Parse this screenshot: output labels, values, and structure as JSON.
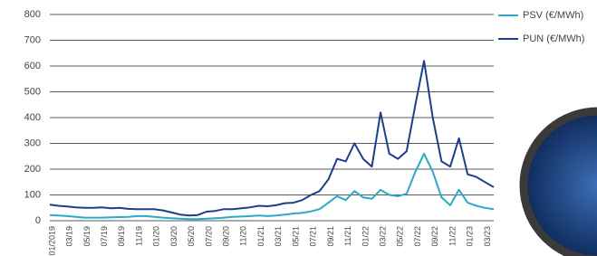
{
  "chart_data": {
    "type": "line",
    "categories": [
      "01/2019",
      null,
      "03/19",
      null,
      "05/19",
      null,
      "07/19",
      null,
      "09/19",
      null,
      "11/19",
      null,
      "01/20",
      null,
      "03/20",
      null,
      "05/20",
      null,
      "07/20",
      null,
      "09/20",
      null,
      "11/20",
      null,
      "01/21",
      null,
      "03/21",
      null,
      "05/21",
      null,
      "07/21",
      null,
      "09/21",
      null,
      "11/21",
      null,
      "01/22",
      null,
      "03/22",
      null,
      "05/22",
      null,
      "07/22",
      null,
      "09/22",
      null,
      "11/22",
      null,
      "01/23",
      null,
      "03/23",
      null
    ],
    "series": [
      {
        "name": "PSV (€/MWh)",
        "color": "#2aa9c8",
        "values": [
          22,
          20,
          18,
          15,
          12,
          12,
          12,
          13,
          14,
          15,
          18,
          18,
          15,
          12,
          10,
          8,
          6,
          6,
          8,
          10,
          12,
          15,
          16,
          18,
          20,
          18,
          20,
          24,
          28,
          30,
          36,
          45,
          70,
          95,
          80,
          115,
          90,
          85,
          120,
          100,
          95,
          105,
          190,
          260,
          190,
          90,
          60,
          120,
          70,
          58,
          50,
          45
        ]
      },
      {
        "name": "PUN (€/MWh)",
        "color": "#1c3f8c",
        "values": [
          62,
          58,
          55,
          52,
          50,
          50,
          52,
          48,
          50,
          46,
          45,
          45,
          45,
          40,
          32,
          24,
          20,
          22,
          35,
          38,
          45,
          45,
          48,
          52,
          58,
          56,
          60,
          68,
          70,
          80,
          100,
          115,
          160,
          240,
          230,
          300,
          240,
          210,
          420,
          260,
          240,
          270,
          450,
          620,
          400,
          230,
          210,
          320,
          180,
          170,
          150,
          130
        ]
      }
    ],
    "ylim": [
      0,
      800
    ],
    "yticks": [
      0,
      100,
      200,
      300,
      400,
      500,
      600,
      700,
      800
    ],
    "grid": true
  }
}
